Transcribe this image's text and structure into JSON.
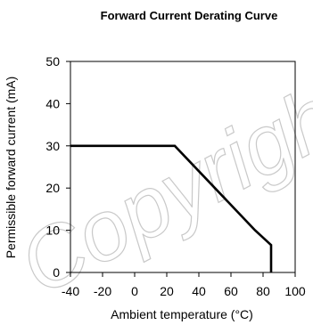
{
  "chart_data": {
    "type": "line",
    "title": "Forward Current Derating  Curve",
    "xlabel": "Ambient temperature (°C)",
    "ylabel": "Permissible forward current (mA)",
    "xlim": [
      -40,
      100
    ],
    "ylim": [
      0,
      50
    ],
    "x_ticks": [
      -40,
      -20,
      0,
      20,
      40,
      60,
      80,
      100
    ],
    "y_ticks": [
      0,
      10,
      20,
      30,
      40,
      50
    ],
    "grid": false,
    "legend": "none",
    "series": [
      {
        "color": "#000000",
        "x": [
          -40,
          25,
          75,
          85,
          85
        ],
        "y": [
          30,
          30,
          10,
          6.5,
          0
        ]
      }
    ]
  },
  "watermark": {
    "text": "Copyright"
  }
}
